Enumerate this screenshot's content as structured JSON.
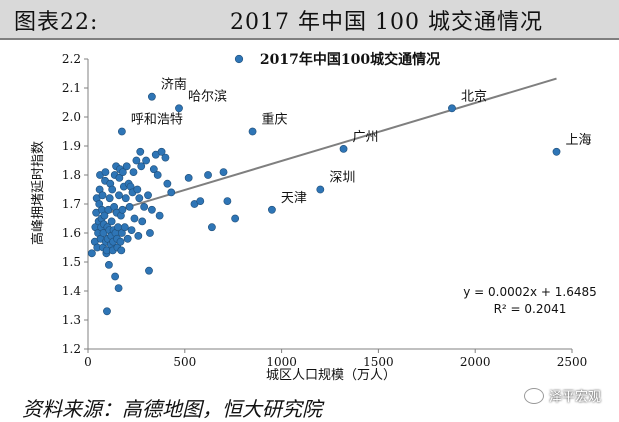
{
  "header": {
    "figure_label": "图表22:",
    "figure_title": "2017 年中国 100 城交通情况"
  },
  "source_text": "资料来源：高德地图，恒大研究院",
  "watermark_text": "泽平宏观",
  "chart_data": {
    "type": "scatter",
    "title": "2017年中国100城交通情况",
    "xlabel": "城区人口规模（万人）",
    "ylabel": "高峰拥堵延时指数",
    "xlim": [
      0,
      2500
    ],
    "ylim": [
      1.2,
      2.2
    ],
    "xticks": [
      0,
      500,
      1000,
      1500,
      2000,
      2500
    ],
    "yticks": [
      1.2,
      1.3,
      1.4,
      1.5,
      1.6,
      1.7,
      1.8,
      1.9,
      2.0,
      2.1,
      2.2
    ],
    "xtick_labels": [
      "0",
      "500",
      "1000",
      "1500",
      "2000",
      "2500"
    ],
    "ytick_labels": [
      "1.2",
      "1.3",
      "1.4",
      "1.5",
      "1.6",
      "1.7",
      "1.8",
      "1.9",
      "2.0",
      "2.1",
      "2.2"
    ],
    "grid": false,
    "marker_color": "#2e75b6",
    "marker_edge_color": "#1f4e79",
    "trendline_color": "#7f7f7f",
    "trendline": {
      "slope": 0.0002,
      "intercept": 1.6485
    },
    "equation_text": "y = 0.0002x + 1.6485",
    "r2_text": "R² = 0.2041",
    "labeled_points": [
      {
        "label": "济南",
        "x": 330,
        "y": 2.07
      },
      {
        "label": "哈尔滨",
        "x": 470,
        "y": 2.03
      },
      {
        "label": "呼和浩特",
        "x": 175,
        "y": 1.95
      },
      {
        "label": "重庆",
        "x": 850,
        "y": 1.95
      },
      {
        "label": "广州",
        "x": 1320,
        "y": 1.89
      },
      {
        "label": "北京",
        "x": 1880,
        "y": 2.03
      },
      {
        "label": "上海",
        "x": 2420,
        "y": 1.88
      },
      {
        "label": "深圳",
        "x": 1200,
        "y": 1.75
      },
      {
        "label": "天津",
        "x": 950,
        "y": 1.68
      }
    ],
    "points": [
      [
        20,
        1.53
      ],
      [
        35,
        1.57
      ],
      [
        38,
        1.62
      ],
      [
        42,
        1.67
      ],
      [
        45,
        1.72
      ],
      [
        48,
        1.55
      ],
      [
        52,
        1.6
      ],
      [
        55,
        1.64
      ],
      [
        58,
        1.7
      ],
      [
        60,
        1.75
      ],
      [
        62,
        1.8
      ],
      [
        65,
        1.58
      ],
      [
        68,
        1.62
      ],
      [
        70,
        1.65
      ],
      [
        72,
        1.68
      ],
      [
        75,
        1.73
      ],
      [
        78,
        1.55
      ],
      [
        80,
        1.6
      ],
      [
        82,
        1.63
      ],
      [
        85,
        1.66
      ],
      [
        88,
        1.78
      ],
      [
        90,
        1.81
      ],
      [
        92,
        1.57
      ],
      [
        95,
        1.53
      ],
      [
        97,
        1.54
      ],
      [
        98,
        1.33
      ],
      [
        100,
        1.62
      ],
      [
        102,
        1.58
      ],
      [
        105,
        1.68
      ],
      [
        108,
        1.49
      ],
      [
        110,
        1.61
      ],
      [
        112,
        1.72
      ],
      [
        115,
        1.77
      ],
      [
        118,
        1.56
      ],
      [
        120,
        1.59
      ],
      [
        122,
        1.64
      ],
      [
        125,
        1.75
      ],
      [
        128,
        1.54
      ],
      [
        130,
        1.57
      ],
      [
        132,
        1.61
      ],
      [
        135,
        1.69
      ],
      [
        138,
        1.8
      ],
      [
        140,
        1.45
      ],
      [
        142,
        1.6
      ],
      [
        145,
        1.83
      ],
      [
        148,
        1.67
      ],
      [
        150,
        1.58
      ],
      [
        152,
        1.55
      ],
      [
        155,
        1.62
      ],
      [
        158,
        1.41
      ],
      [
        160,
        1.73
      ],
      [
        162,
        1.79
      ],
      [
        165,
        1.82
      ],
      [
        168,
        1.57
      ],
      [
        170,
        1.66
      ],
      [
        172,
        1.54
      ],
      [
        175,
        1.6
      ],
      [
        178,
        1.68
      ],
      [
        180,
        1.81
      ],
      [
        185,
        1.76
      ],
      [
        190,
        1.62
      ],
      [
        195,
        1.72
      ],
      [
        200,
        1.83
      ],
      [
        205,
        1.58
      ],
      [
        210,
        1.77
      ],
      [
        215,
        1.69
      ],
      [
        220,
        1.76
      ],
      [
        225,
        1.61
      ],
      [
        230,
        1.74
      ],
      [
        235,
        1.81
      ],
      [
        240,
        1.65
      ],
      [
        250,
        1.85
      ],
      [
        255,
        1.75
      ],
      [
        260,
        1.59
      ],
      [
        265,
        1.72
      ],
      [
        270,
        1.88
      ],
      [
        275,
        1.83
      ],
      [
        280,
        1.64
      ],
      [
        290,
        1.69
      ],
      [
        300,
        1.85
      ],
      [
        310,
        1.73
      ],
      [
        315,
        1.47
      ],
      [
        320,
        1.6
      ],
      [
        330,
        1.68
      ],
      [
        340,
        1.82
      ],
      [
        350,
        1.87
      ],
      [
        360,
        1.8
      ],
      [
        370,
        1.66
      ],
      [
        380,
        1.88
      ],
      [
        400,
        1.86
      ],
      [
        410,
        1.77
      ],
      [
        430,
        1.74
      ],
      [
        520,
        1.79
      ],
      [
        550,
        1.7
      ],
      [
        580,
        1.71
      ],
      [
        620,
        1.8
      ],
      [
        640,
        1.62
      ],
      [
        700,
        1.81
      ],
      [
        720,
        1.71
      ],
      [
        760,
        1.65
      ]
    ]
  }
}
